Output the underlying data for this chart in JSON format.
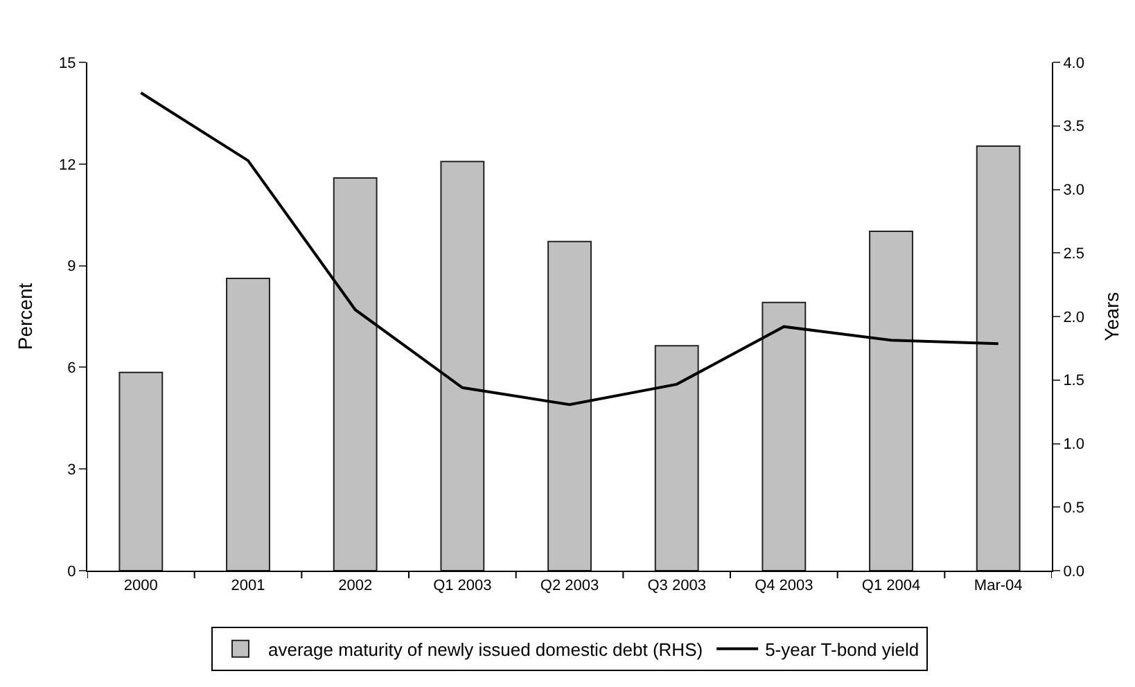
{
  "chart_data": {
    "type": "bar",
    "xlabel": null,
    "ylabel": "Percent",
    "y2label": "Years",
    "categories": [
      "2000",
      "2001",
      "2002",
      "Q1 2003",
      "Q2 2003",
      "Q3 2003",
      "Q4 2003",
      "Q1 2004",
      "Mar-04"
    ],
    "series": [
      {
        "name": "average maturity of newly issued domestic debt (RHS)",
        "axis": "y2",
        "color": "#c0c0c0",
        "values": [
          1.56,
          2.3,
          3.09,
          3.22,
          2.59,
          1.77,
          2.11,
          2.67,
          3.34
        ]
      },
      {
        "name": "5-year T-bond yield",
        "type": "line",
        "axis": "y",
        "color": "#000000",
        "values": [
          14.1,
          12.1,
          7.7,
          5.4,
          4.9,
          5.5,
          7.2,
          6.8,
          6.7
        ]
      }
    ],
    "ylim": [
      0,
      15
    ],
    "yticks": [
      0,
      3,
      6,
      9,
      12,
      15
    ],
    "y2lim": [
      0,
      4
    ],
    "y2ticks": [
      {
        "value": 0,
        "label": "0.0"
      },
      {
        "value": 0.5,
        "label": "0.5"
      },
      {
        "value": 1,
        "label": "1.0"
      },
      {
        "value": 1.5,
        "label": "1.5"
      },
      {
        "value": 2,
        "label": "2.0"
      },
      {
        "value": 2.5,
        "label": "2.5"
      },
      {
        "value": 3,
        "label": "3.0"
      },
      {
        "value": 3.5,
        "label": "3.5"
      },
      {
        "value": 4,
        "label": "4.0"
      }
    ],
    "legend": "bottom",
    "marker": "none",
    "line_style": "solid"
  }
}
